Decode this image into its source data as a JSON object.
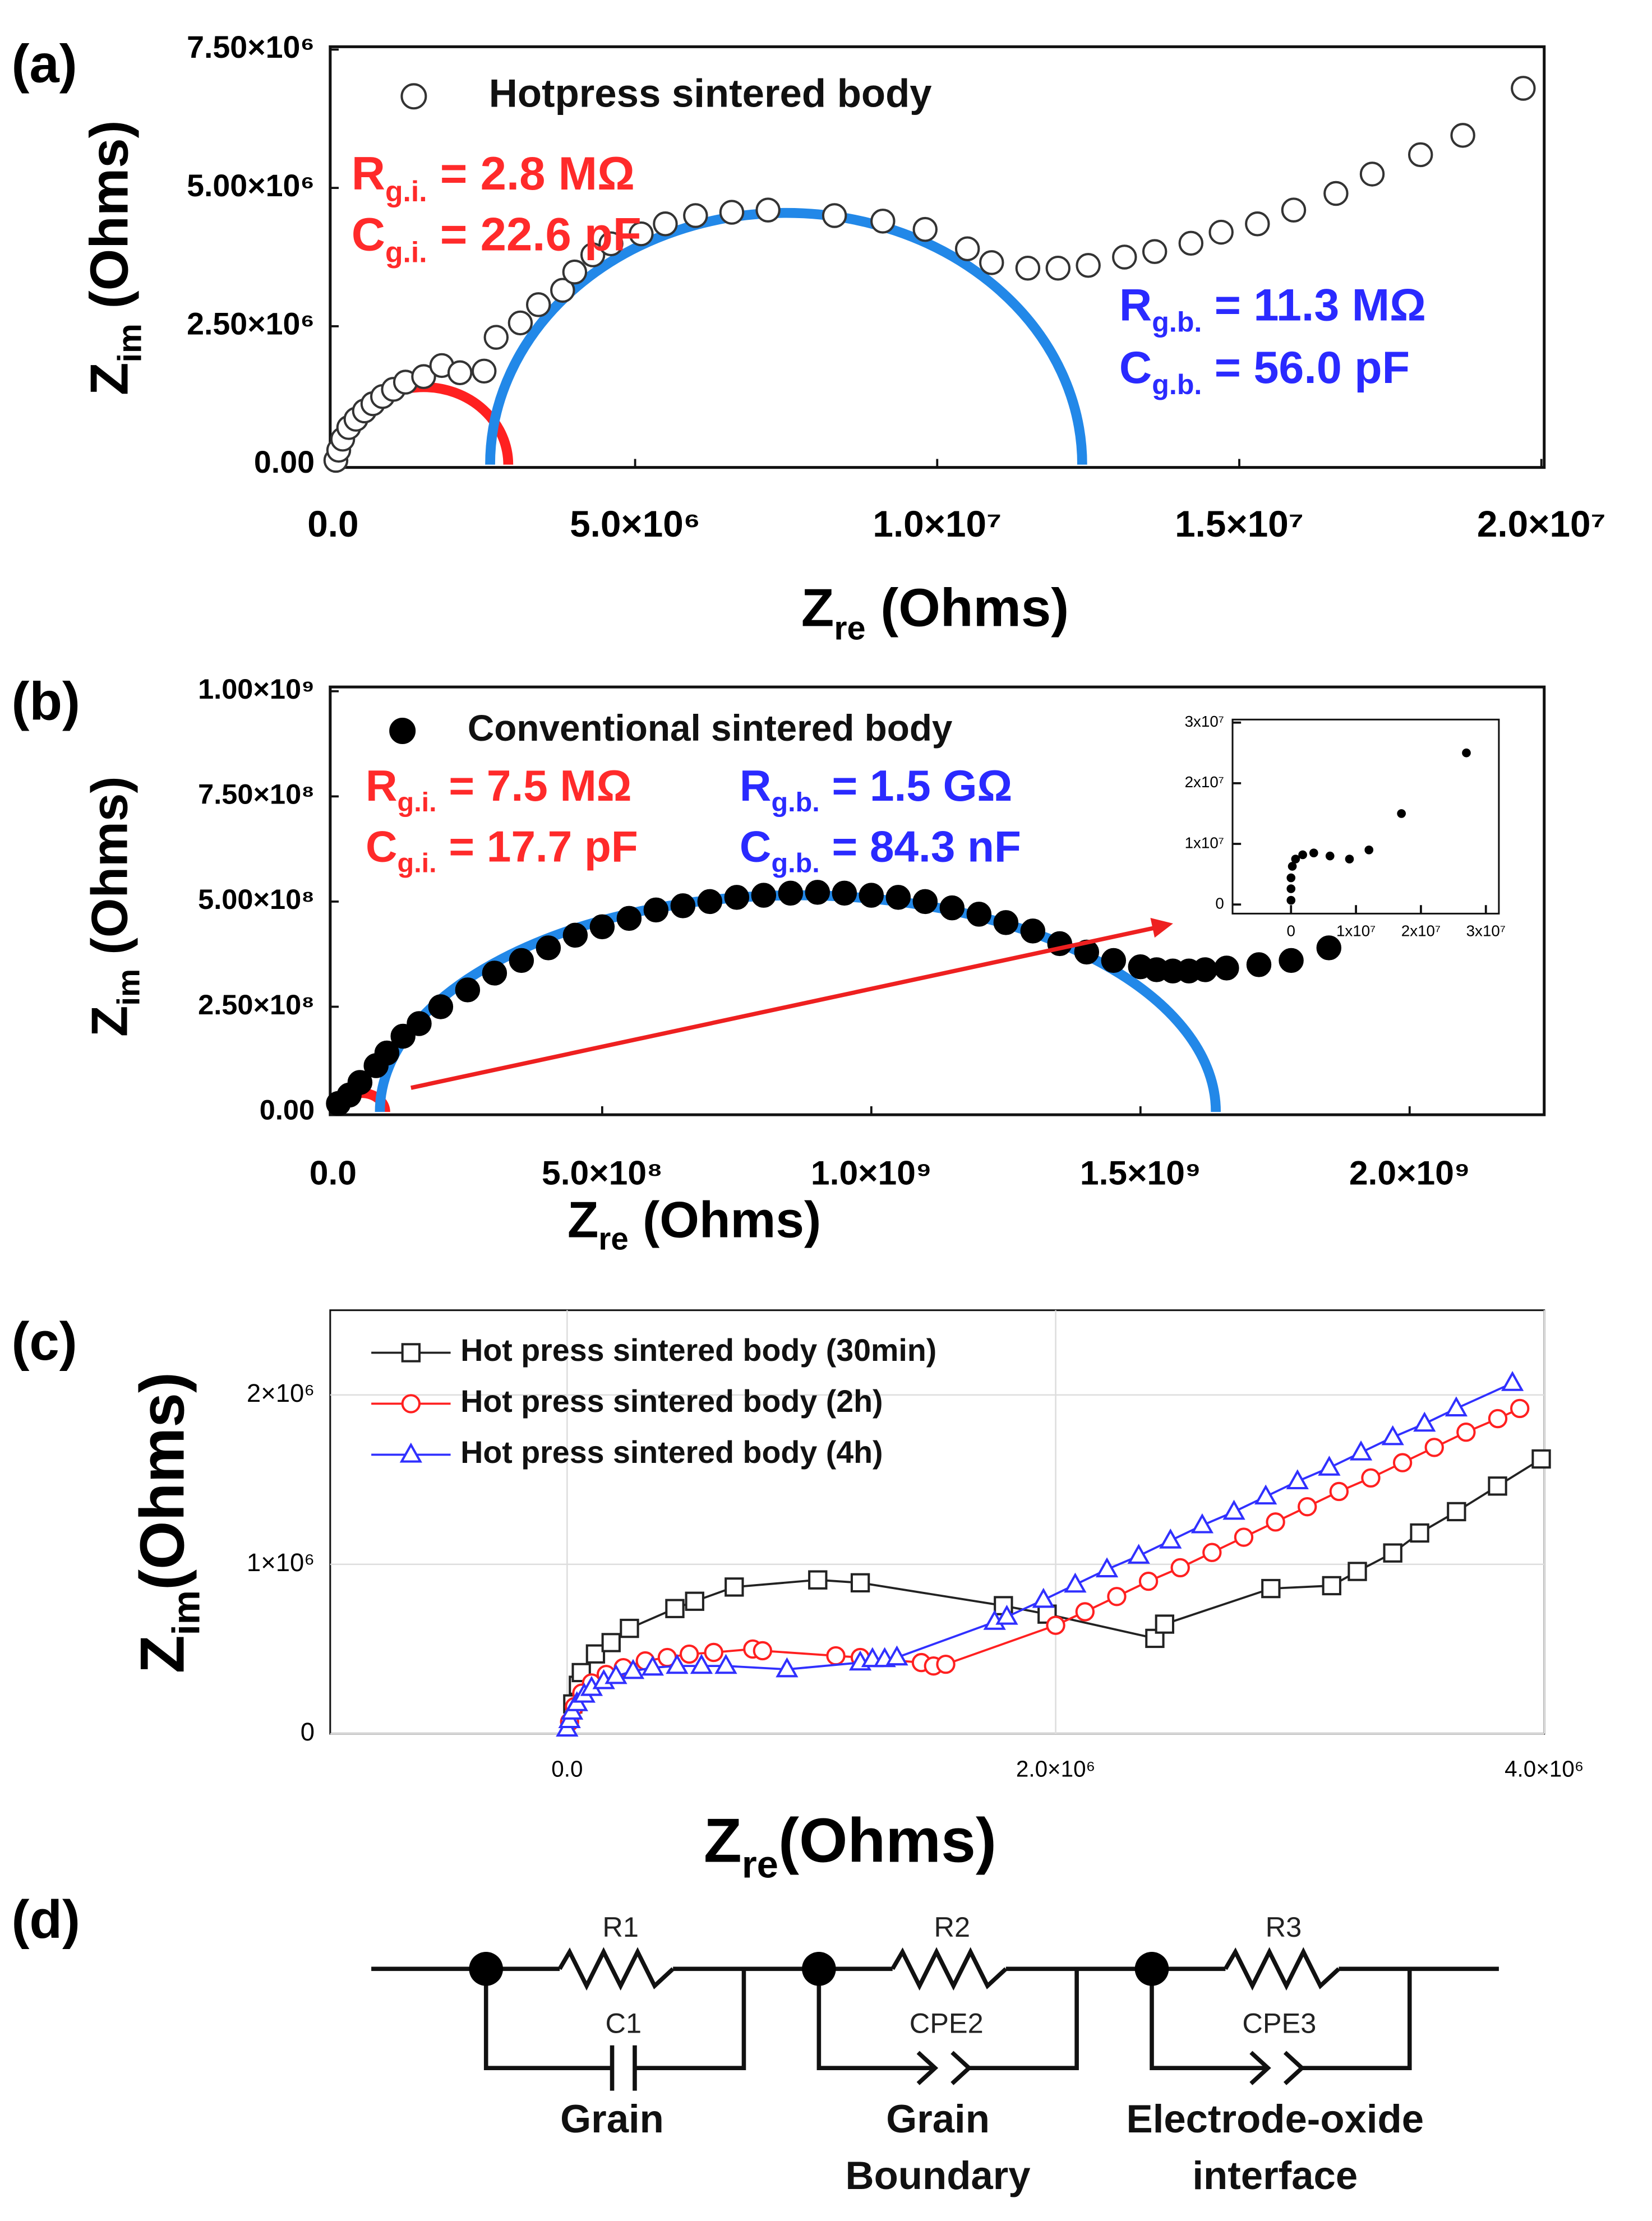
{
  "chart_data": [
    {
      "type": "scatter",
      "panel": "(a)",
      "xlabel": {
        "main": "Z",
        "sub": "re",
        "rest": " (Ohms)"
      },
      "ylabel": {
        "main": "Z",
        "sub": "im",
        "rest": " (Ohms)"
      },
      "xlim": [
        0,
        20000000.0
      ],
      "ylim": [
        0,
        7500000.0
      ],
      "xticks": [
        {
          "value": 0,
          "label": "0.0"
        },
        {
          "value": 5000000.0,
          "label": "5.0×10⁶"
        },
        {
          "value": 10000000.0,
          "label": "1.0×10⁷"
        },
        {
          "value": 15000000.0,
          "label": "1.5×10⁷"
        },
        {
          "value": 20000000.0,
          "label": "2.0×10⁷"
        }
      ],
      "yticks": [
        {
          "value": 0,
          "label": "0.00"
        },
        {
          "value": 2500000.0,
          "label": "2.50×10⁶"
        },
        {
          "value": 5000000.0,
          "label": "5.00×10⁶"
        },
        {
          "value": 7500000.0,
          "label": "7.50×10⁶"
        }
      ],
      "grid": false,
      "legend": "upper left",
      "series": [
        {
          "name": "Hotpress sintered body",
          "color": "#333333",
          "marker": "circle",
          "filled": false,
          "x": [
            47000.0,
            94000.0,
            160000.0,
            260000.0,
            380000.0,
            520000.0,
            660000.0,
            820000.0,
            1000000.0,
            1200000.0,
            1500000.0,
            1800000.0,
            2100000.0,
            2500000.0,
            2700000.0,
            3100000.0,
            3400000.0,
            3800000.0,
            4000000.0,
            4300000.0,
            4600000.0,
            5100000.0,
            5500000.0,
            6000000.0,
            6600000.0,
            7200000.0,
            8300000.0,
            9100000.0,
            9800000.0,
            10500000.0,
            10900000.0,
            11500000.0,
            12000000.0,
            12500000.0,
            13100000.0,
            13600000.0,
            14200000.0,
            14700000.0,
            15300000.0,
            15900000.0,
            16600000.0,
            17200000.0,
            18000000.0,
            18700000.0,
            19700000.0
          ],
          "values": [
            77000.0,
            260000.0,
            460000.0,
            670000.0,
            820000.0,
            970000.0,
            1100000.0,
            1230000.0,
            1360000.0,
            1490000.0,
            1590000.0,
            1790000.0,
            1660000.0,
            1690000.0,
            2300000.0,
            2560000.0,
            2890000.0,
            3150000.0,
            3480000.0,
            3790000.0,
            3990000.0,
            4170000.0,
            4350000.0,
            4500000.0,
            4560000.0,
            4600000.0,
            4500000.0,
            4400000.0,
            4250000.0,
            3900000.0,
            3650000.0,
            3550000.0,
            3550000.0,
            3600000.0,
            3750000.0,
            3850000.0,
            4000000.0,
            4200000.0,
            4350000.0,
            4600000.0,
            4900000.0,
            5250000.0,
            5600000.0,
            5950000.0,
            6800000.0
          ]
        }
      ],
      "fits": [
        {
          "color": "#ff2020",
          "x": [
            100000.0,
            2900000.0
          ],
          "peak": 1400000.0
        },
        {
          "color": "#2288e8",
          "x": [
            2600000.0,
            12400000.0
          ],
          "peak": 4550000.0
        }
      ],
      "annotations": [
        {
          "main": "R",
          "sub": "g.i.",
          "rest": " = 2.8 MΩ",
          "color": "#ff2a2a"
        },
        {
          "main": "C",
          "sub": "g.i.",
          "rest": " = 22.6 pF",
          "color": "#ff2a2a"
        },
        {
          "main": "R",
          "sub": "g.b.",
          "rest": " = 11.3 MΩ",
          "color": "#2a2aff"
        },
        {
          "main": "C",
          "sub": "g.b.",
          "rest": " = 56.0 pF",
          "color": "#2a2aff"
        }
      ]
    },
    {
      "type": "scatter",
      "panel": "(b)",
      "xlabel": {
        "main": "Z",
        "sub": "re",
        "rest": " (Ohms)"
      },
      "ylabel": {
        "main": "Z",
        "sub": "im",
        "rest": " (Ohms)"
      },
      "xlim": [
        0,
        2250000000.0
      ],
      "ylim": [
        0,
        1000000000.0
      ],
      "xticks": [
        {
          "value": 0,
          "label": "0.0"
        },
        {
          "value": 500000000.0,
          "label": "5.0×10⁸"
        },
        {
          "value": 1000000000.0,
          "label": "1.0×10⁹"
        },
        {
          "value": 1500000000.0,
          "label": "1.5×10⁹"
        },
        {
          "value": 2000000000.0,
          "label": "2.0×10⁹"
        }
      ],
      "yticks": [
        {
          "value": 0,
          "label": "0.00"
        },
        {
          "value": 250000000.0,
          "label": "2.50×10⁸"
        },
        {
          "value": 500000000.0,
          "label": "5.00×10⁸"
        },
        {
          "value": 750000000.0,
          "label": "7.50×10⁸"
        },
        {
          "value": 1000000000.0,
          "label": "1.00×10⁹"
        }
      ],
      "grid": false,
      "legend": "upper left",
      "series": [
        {
          "name": "Conventional sintered body",
          "color": "#000000",
          "marker": "circle",
          "filled": true,
          "x": [
            10000000.0,
            30000000.0,
            50000000.0,
            80000000.0,
            100000000.0,
            130000000.0,
            160000000.0,
            200000000.0,
            250000000.0,
            300000000.0,
            350000000.0,
            400000000.0,
            450000000.0,
            500000000.0,
            550000000.0,
            600000000.0,
            650000000.0,
            700000000.0,
            750000000.0,
            800000000.0,
            850000000.0,
            900000000.0,
            950000000.0,
            1000000000.0,
            1050000000.0,
            1100000000.0,
            1150000000.0,
            1200000000.0,
            1250000000.0,
            1300000000.0,
            1350000000.0,
            1400000000.0,
            1450000000.0,
            1500000000.0,
            1530000000.0,
            1560000000.0,
            1590000000.0,
            1620000000.0,
            1660000000.0,
            1720000000.0,
            1780000000.0,
            1850000000.0
          ],
          "values": [
            20000000.0,
            40000000.0,
            70000000.0,
            110000000.0,
            140000000.0,
            180000000.0,
            210000000.0,
            250000000.0,
            290000000.0,
            330000000.0,
            360000000.0,
            390000000.0,
            420000000.0,
            440000000.0,
            460000000.0,
            480000000.0,
            490000000.0,
            500000000.0,
            510000000.0,
            515000000.0,
            520000000.0,
            522000000.0,
            520000000.0,
            515000000.0,
            510000000.0,
            500000000.0,
            485000000.0,
            470000000.0,
            450000000.0,
            430000000.0,
            400000000.0,
            380000000.0,
            360000000.0,
            345000000.0,
            338000000.0,
            335000000.0,
            335000000.0,
            338000000.0,
            342000000.0,
            350000000.0,
            360000000.0,
            390000000.0
          ]
        }
      ],
      "fits": [
        {
          "color": "#ff2020",
          "x": [
            8000000.0,
            97000000.0
          ],
          "peak": 45000000.0
        },
        {
          "color": "#2288e8",
          "x": [
            87000000.0,
            1640000000.0
          ],
          "peak": 515000000.0
        }
      ],
      "annotations": [
        {
          "main": "R",
          "sub": "g.i.",
          "rest": " = 7.5 MΩ",
          "color": "#ff2a2a"
        },
        {
          "main": "C",
          "sub": "g.i.",
          "rest": " = 17.7 pF",
          "color": "#ff2a2a"
        },
        {
          "main": "R",
          "sub": "g.b.",
          "rest": " = 1.5 GΩ",
          "color": "#2a2aff"
        },
        {
          "main": "C",
          "sub": "g.b.",
          "rest": " = 84.3 nF",
          "color": "#2a2aff"
        }
      ],
      "inset": {
        "type": "scatter",
        "xlim": [
          -9000000.0,
          32000000.0
        ],
        "ylim": [
          -1500000.0,
          30500000.0
        ],
        "xticks": [
          0,
          {
            "value": 10000000.0,
            "label": "1x10⁷"
          },
          {
            "value": 20000000.0,
            "label": "2x10⁷"
          },
          {
            "value": 30000000.0,
            "label": "3x10⁷"
          }
        ],
        "yticks": [
          0,
          {
            "value": 10000000.0,
            "label": "1x10⁷"
          },
          {
            "value": 20000000.0,
            "label": "2x10⁷"
          },
          {
            "value": 30000000.0,
            "label": "3x10⁷"
          }
        ],
        "series": [
          {
            "color": "#000000",
            "marker": "circle",
            "filled": true,
            "x": [
              0,
              0,
              0,
              200000.0,
              700000.0,
              1800000.0,
              3500000.0,
              6000000.0,
              9000000.0,
              12000000.0,
              17000000.0,
              27000000.0
            ],
            "values": [
              700000.0,
              2600000.0,
              4400000.0,
              6300000.0,
              7500000.0,
              8200000.0,
              8500000.0,
              8000000.0,
              7500000.0,
              9000000.0,
              15000000.0,
              25000000.0
            ]
          }
        ]
      }
    },
    {
      "type": "line",
      "panel": "(c)",
      "xlabel": {
        "main": "Z",
        "sub": "re",
        "rest": "(Ohms)"
      },
      "ylabel": {
        "main": "Z",
        "sub": "im",
        "rest": "(Ohms)"
      },
      "xlim": [
        -970000.0,
        4000000.0
      ],
      "ylim": [
        0,
        2500000.0
      ],
      "xticks": [
        {
          "value": 0,
          "label": "0.0"
        },
        {
          "value": 2000000.0,
          "label": "2.0×10⁶"
        },
        {
          "value": 4000000.0,
          "label": "4.0×10⁶"
        }
      ],
      "yticks": [
        0,
        {
          "value": 1000000.0,
          "label": "1×10⁶"
        },
        {
          "value": 2000000.0,
          "label": "2×10⁶"
        }
      ],
      "grid": true,
      "legend": "upper left",
      "series": [
        {
          "name": "Hot press sintered body (30min)",
          "color": "#222222",
          "marker": "square",
          "filled": false,
          "x": [
            23000.0,
            46000.0,
            58000.0,
            116000.0,
            180000.0,
            255000.0,
            441000.0,
            522000.0,
            684000.0,
            1026000.0,
            1200000.0,
            1786000.0,
            1965000.0,
            2406000.0,
            2446000.0,
            2881000.0,
            3130000.0,
            3235000.0,
            3380000.0,
            3490000.0,
            3641000.0,
            3809000.0,
            3988000.0
          ],
          "values": [
            176000.0,
            286000.0,
            361000.0,
            471000.0,
            538000.0,
            622000.0,
            739000.0,
            782000.0,
            866000.0,
            908000.0,
            891000.0,
            756000.0,
            706000.0,
            563000.0,
            647000.0,
            857000.0,
            874000.0,
            958000.0,
            1067000.0,
            1185000.0,
            1311000.0,
            1462000.0,
            1622000.0
          ]
        },
        {
          "name": "Hot press sintered body (2h)",
          "color": "#ff2020",
          "marker": "circle",
          "filled": false,
          "x": [
            10000.0,
            30000.0,
            60000.0,
            100000.0,
            160000.0,
            230000.0,
            320000.0,
            410000.0,
            500000.0,
            600000.0,
            760000.0,
            800000.0,
            1100000.0,
            1200000.0,
            1450000.0,
            1500000.0,
            1550000.0,
            2000000.0,
            2120000.0,
            2250000.0,
            2380000.0,
            2510000.0,
            2640000.0,
            2770000.0,
            2900000.0,
            3030000.0,
            3160000.0,
            3290000.0,
            3420000.0,
            3550000.0,
            3680000.0,
            3810000.0,
            3900000.0
          ],
          "values": [
            70000.0,
            160000.0,
            240000.0,
            300000.0,
            350000.0,
            390000.0,
            430000.0,
            450000.0,
            470000.0,
            480000.0,
            500000.0,
            490000.0,
            460000.0,
            450000.0,
            420000.0,
            400000.0,
            410000.0,
            640000.0,
            720000.0,
            810000.0,
            900000.0,
            980000.0,
            1070000.0,
            1160000.0,
            1250000.0,
            1340000.0,
            1430000.0,
            1510000.0,
            1600000.0,
            1690000.0,
            1780000.0,
            1860000.0,
            1920000.0
          ]
        },
        {
          "name": "Hot press sintered body (4h)",
          "color": "#3030ff",
          "marker": "triangle",
          "filled": false,
          "x": [
            0,
            10000.0,
            20000.0,
            40000.0,
            70000.0,
            100000.0,
            150000.0,
            200000.0,
            270000.0,
            350000.0,
            450000.0,
            550000.0,
            650000.0,
            900000.0,
            1200000.0,
            1250000.0,
            1300000.0,
            1350000.0,
            1750000.0,
            1800000.0,
            1950000.0,
            2080000.0,
            2210000.0,
            2340000.0,
            2470000.0,
            2600000.0,
            2730000.0,
            2860000.0,
            2990000.0,
            3120000.0,
            3250000.0,
            3380000.0,
            3510000.0,
            3640000.0,
            3870000.0
          ],
          "values": [
            30000.0,
            80000.0,
            130000.0,
            180000.0,
            230000.0,
            270000.0,
            310000.0,
            340000.0,
            370000.0,
            390000.0,
            400000.0,
            400000.0,
            400000.0,
            380000.0,
            420000.0,
            440000.0,
            440000.0,
            450000.0,
            660000.0,
            690000.0,
            790000.0,
            880000.0,
            970000.0,
            1050000.0,
            1140000.0,
            1230000.0,
            1310000.0,
            1400000.0,
            1490000.0,
            1570000.0,
            1660000.0,
            1750000.0,
            1830000.0,
            1920000.0,
            2070000.0
          ]
        }
      ]
    }
  ],
  "circuit": {
    "panel": "(d)",
    "resistors": [
      "R1",
      "R2",
      "R3"
    ],
    "elements": [
      "C1",
      "CPE2",
      "CPE3"
    ],
    "labels": [
      [
        "Grain"
      ],
      [
        "Grain",
        "Boundary"
      ],
      [
        "Electrode-oxide",
        "interface"
      ]
    ]
  }
}
